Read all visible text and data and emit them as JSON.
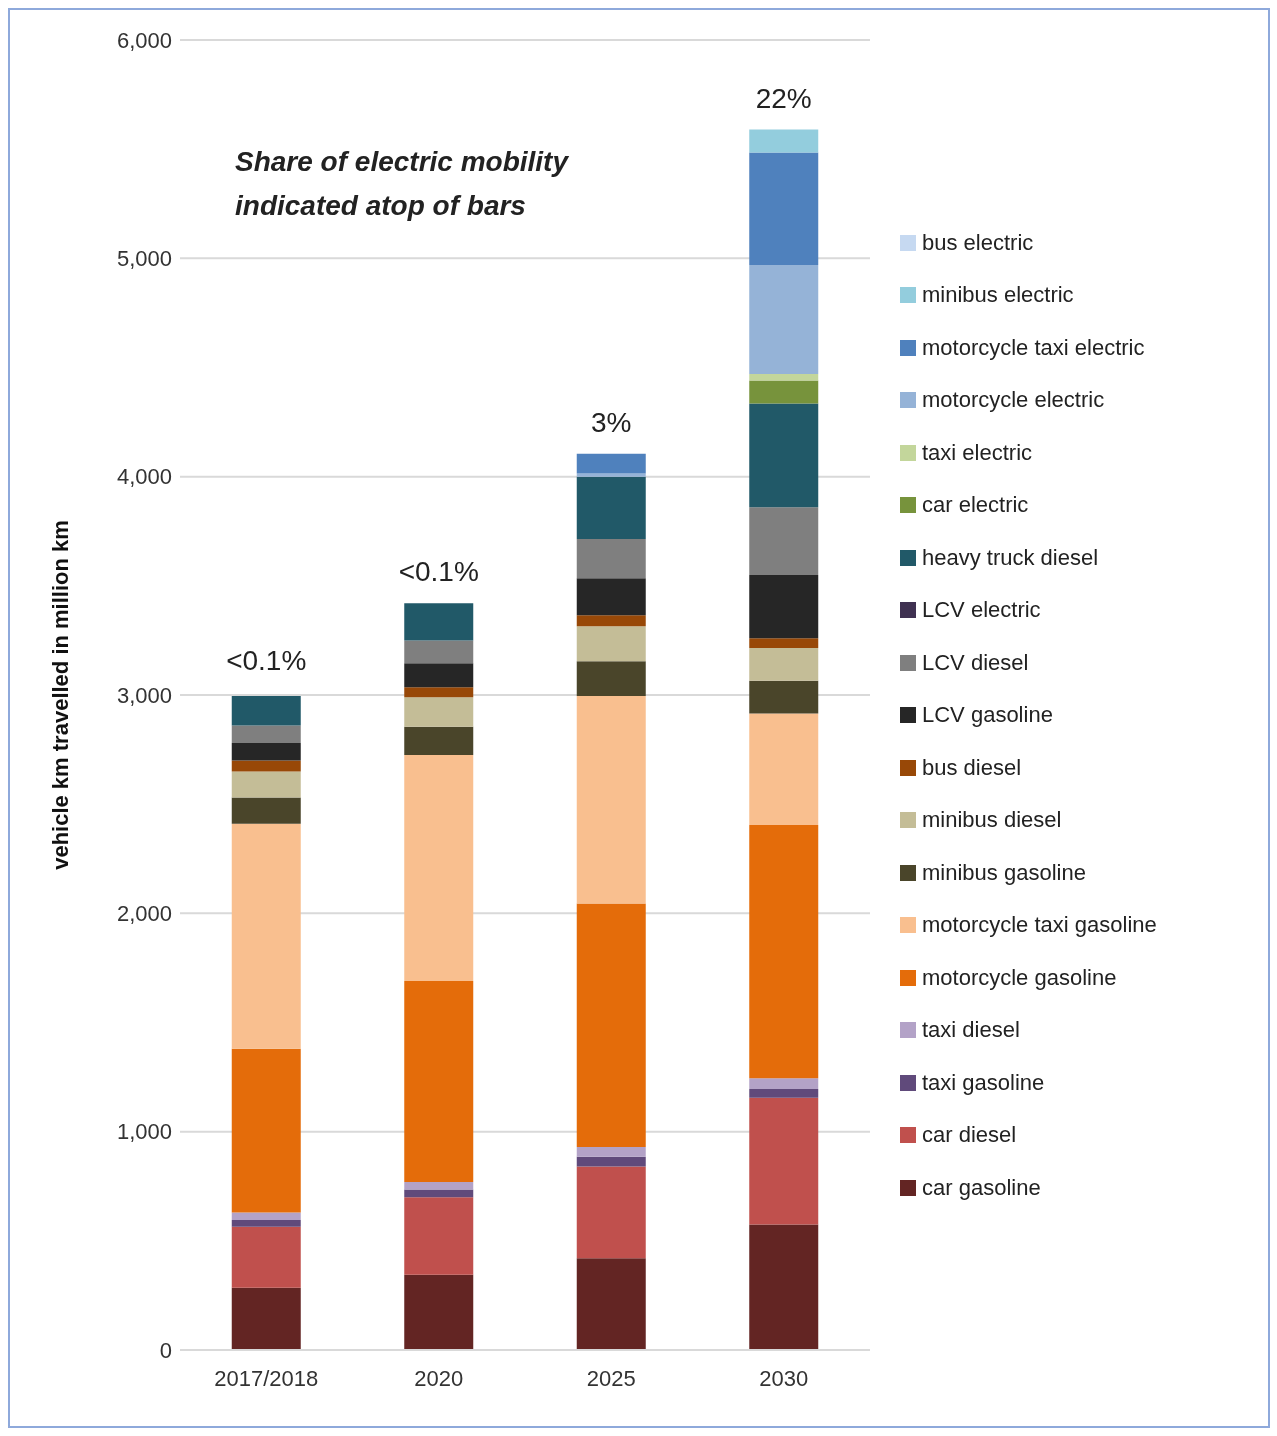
{
  "chart_data": {
    "type": "bar",
    "stacked": true,
    "ylabel": "vehicle km travelled in million km",
    "annotations": [
      "Share of electric mobility indicated atop of bars",
      {
        "text": "<0.1%",
        "x": "2017/2018",
        "y": 3015
      },
      {
        "text": "<0.1%",
        "x": "2020",
        "y": 3420
      },
      {
        "text": "3%",
        "x": "2025",
        "y": 4105
      },
      {
        "text": "22%",
        "x": "2030",
        "y": 5590
      }
    ],
    "categories": [
      "2017/2018",
      "2020",
      "2025",
      "2030"
    ],
    "ylim": [
      0,
      6000
    ],
    "yticks": [
      {
        "value": 0,
        "label": "0"
      },
      {
        "value": 1000,
        "label": "1,000"
      },
      {
        "value": 2000,
        "label": "2,000"
      },
      {
        "value": 3000,
        "label": "3,000"
      },
      {
        "value": 4000,
        "label": "4,000"
      },
      {
        "value": 5000,
        "label": "5,000"
      },
      {
        "value": 6000,
        "label": "6,000"
      }
    ],
    "grid": "y",
    "legend": "right",
    "series": [
      {
        "name": "car gasoline",
        "color": "#632523",
        "values": [
          285,
          345,
          420,
          575
        ]
      },
      {
        "name": "car diesel",
        "color": "#c0504d",
        "values": [
          280,
          355,
          420,
          580
        ]
      },
      {
        "name": "taxi gasoline",
        "color": "#604a7b",
        "values": [
          30,
          35,
          45,
          40
        ]
      },
      {
        "name": "taxi diesel",
        "color": "#b3a2c7",
        "values": [
          35,
          35,
          45,
          50
        ]
      },
      {
        "name": "motorcycle gasoline",
        "color": "#e46c0a",
        "values": [
          750,
          920,
          1115,
          1160
        ]
      },
      {
        "name": "motorcycle taxi gasoline",
        "color": "#f9bf8f",
        "values": [
          1030,
          1035,
          950,
          510
        ]
      },
      {
        "name": "minibus gasoline",
        "color": "#4a452a",
        "values": [
          120,
          130,
          160,
          150
        ]
      },
      {
        "name": "minibus diesel",
        "color": "#c4bd97",
        "values": [
          120,
          135,
          160,
          150
        ]
      },
      {
        "name": "bus diesel",
        "color": "#984807",
        "values": [
          50,
          45,
          50,
          45
        ]
      },
      {
        "name": "LCV gasoline",
        "color": "#262626",
        "values": [
          80,
          110,
          170,
          290
        ]
      },
      {
        "name": "LCV diesel",
        "color": "#7f7f7f",
        "values": [
          80,
          105,
          180,
          310
        ]
      },
      {
        "name": "LCV electric",
        "color": "#3f3151",
        "values": [
          0,
          0,
          0,
          0
        ]
      },
      {
        "name": "heavy truck diesel",
        "color": "#215968",
        "values": [
          135,
          170,
          285,
          475
        ]
      },
      {
        "name": "car electric",
        "color": "#77933c",
        "values": [
          0,
          0,
          0,
          105
        ]
      },
      {
        "name": "taxi electric",
        "color": "#c3d69b",
        "values": [
          0,
          0,
          0,
          30
        ]
      },
      {
        "name": "motorcycle electric",
        "color": "#95b3d7",
        "values": [
          0,
          0,
          15,
          500
        ]
      },
      {
        "name": "motorcycle taxi electric",
        "color": "#4f81bd",
        "values": [
          0,
          0,
          90,
          515
        ]
      },
      {
        "name": "minibus electric",
        "color": "#93cddd",
        "values": [
          0,
          0,
          0,
          105
        ]
      },
      {
        "name": "bus electric",
        "color": "#c6d9f1",
        "values": [
          0,
          0,
          0,
          0
        ]
      }
    ]
  }
}
